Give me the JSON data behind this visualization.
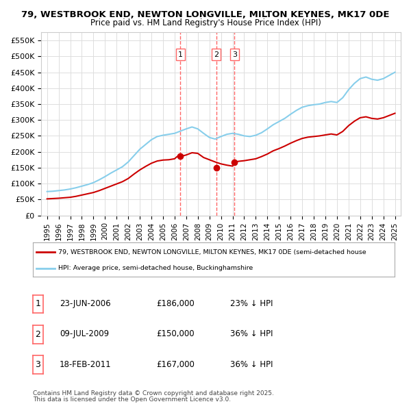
{
  "title_line1": "79, WESTBROOK END, NEWTON LONGVILLE, MILTON KEYNES, MK17 0DE",
  "title_line2": "Price paid vs. HM Land Registry's House Price Index (HPI)",
  "ylabel": "",
  "ylim": [
    0,
    575000
  ],
  "yticks": [
    0,
    50000,
    100000,
    150000,
    200000,
    250000,
    300000,
    350000,
    400000,
    450000,
    500000,
    550000
  ],
  "ytick_labels": [
    "£0",
    "£50K",
    "£100K",
    "£150K",
    "£200K",
    "£250K",
    "£300K",
    "£350K",
    "£400K",
    "£450K",
    "£500K",
    "£550K"
  ],
  "hpi_color": "#87CEEB",
  "price_color": "#CC0000",
  "vline_color": "#FF6666",
  "sale_markers": [
    {
      "date_idx": 11.5,
      "price": 186000,
      "label": "1",
      "date_str": "23-JUN-2006",
      "pct": "23%"
    },
    {
      "date_idx": 14.6,
      "price": 150000,
      "label": "2",
      "date_str": "09-JUL-2009",
      "pct": "36%"
    },
    {
      "date_idx": 16.2,
      "price": 167000,
      "label": "3",
      "date_str": "18-FEB-2011",
      "pct": "36%"
    }
  ],
  "legend_line1": "79, WESTBROOK END, NEWTON LONGVILLE, MILTON KEYNES, MK17 0DE (semi-detached house",
  "legend_line2": "HPI: Average price, semi-detached house, Buckinghamshire",
  "footer1": "Contains HM Land Registry data © Crown copyright and database right 2025.",
  "footer2": "This data is licensed under the Open Government Licence v3.0.",
  "bg_color": "#ffffff",
  "plot_bg_color": "#ffffff",
  "grid_color": "#dddddd"
}
